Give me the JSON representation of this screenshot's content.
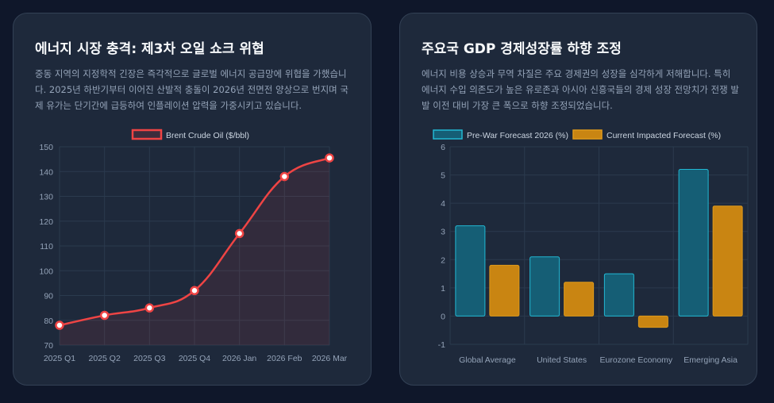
{
  "colors": {
    "oil_line": "#ef4444",
    "oil_fill": "rgba(239,68,68,0.10)",
    "pre_war_fill": "#155e75",
    "pre_war_stroke": "#22b8d3",
    "current_fill": "#c98512",
    "current_stroke": "#e09a1b",
    "grid": "#2b3a4e",
    "tick": "#94a3b8",
    "legend_text": "#cbd5e1"
  },
  "left_card": {
    "title": "에너지 시장 충격: 제3차 오일 쇼크 위협",
    "description": "중동 지역의 지정학적 긴장은 즉각적으로 글로벌 에너지 공급망에 위협을 가했습니다. 2025년 하반기부터 이어진 산발적 충돌이 2026년 전면전 양상으로 번지며 국제 유가는 단기간에 급등하여 인플레이션 압력을 가중시키고 있습니다."
  },
  "right_card": {
    "title": "주요국 GDP 경제성장률 하향 조정",
    "description": "에너지 비용 상승과 무역 차질은 주요 경제권의 성장을 심각하게 저해합니다. 특히 에너지 수입 의존도가 높은 유로존과 아시아 신흥국들의 경제 성장 전망치가 전쟁 발발 이전 대비 가장 큰 폭으로 하향 조정되었습니다."
  },
  "chart_data": [
    {
      "type": "line",
      "title": "",
      "categories": [
        "2025 Q1",
        "2025 Q2",
        "2025 Q3",
        "2025 Q4",
        "2026 Jan",
        "2026 Feb",
        "2026 Mar"
      ],
      "series": [
        {
          "name": "Brent Crude Oil ($/bbl)",
          "values": [
            78,
            82,
            85,
            92,
            115,
            138,
            145.5
          ]
        }
      ],
      "ylim": [
        70,
        150
      ],
      "yticks": [
        "70",
        "80",
        "90",
        "100",
        "110",
        "120",
        "130",
        "140",
        "150"
      ],
      "xlabel": "",
      "ylabel": "",
      "legend": "top-center",
      "grid": true
    },
    {
      "type": "bar",
      "title": "",
      "categories": [
        "Global Average",
        "United States",
        "Eurozone Economy",
        "Emerging Asia"
      ],
      "series": [
        {
          "name": "Pre-War Forecast 2026 (%)",
          "values": [
            3.2,
            2.1,
            1.5,
            5.2
          ]
        },
        {
          "name": "Current Impacted Forecast (%)",
          "values": [
            1.8,
            1.2,
            -0.4,
            3.9
          ]
        }
      ],
      "ylim": [
        -1,
        6
      ],
      "yticks": [
        "-1",
        "0",
        "1",
        "2",
        "3",
        "4",
        "5",
        "6"
      ],
      "xlabel": "",
      "ylabel": "",
      "legend": "top-center",
      "grid": true
    }
  ]
}
